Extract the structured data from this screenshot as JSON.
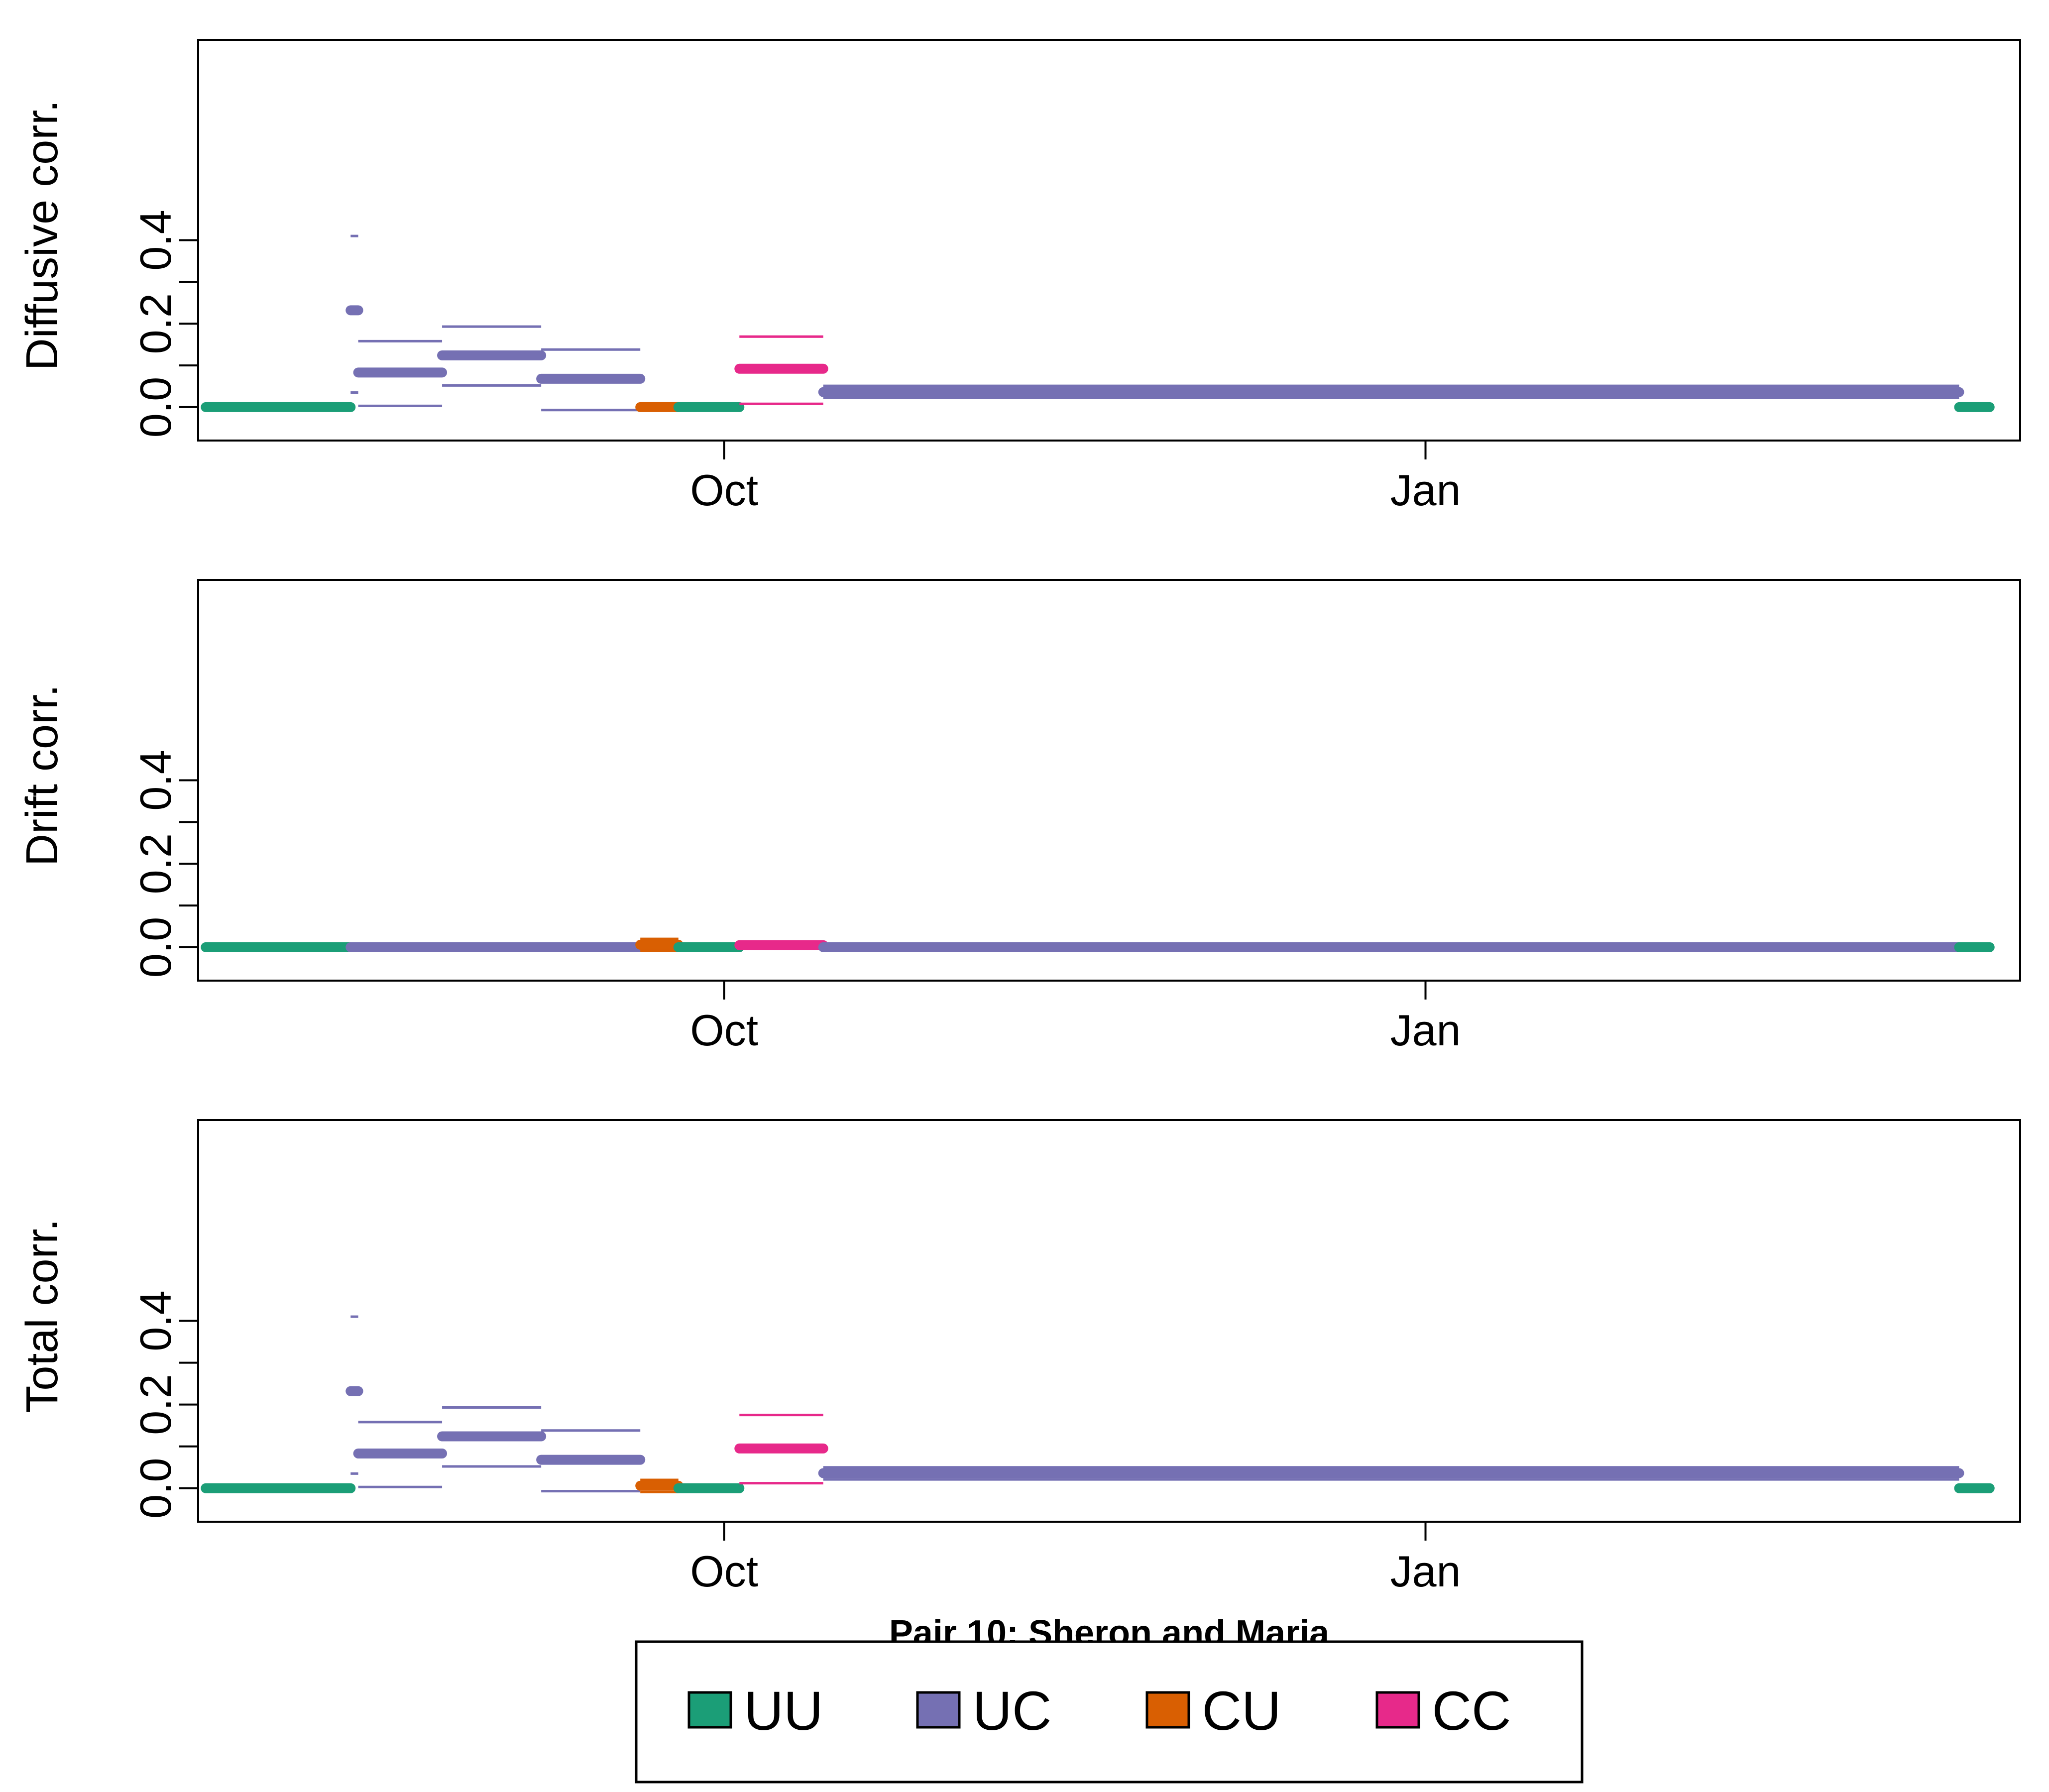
{
  "caption": "Pair 10: Sheron and Maria",
  "chart_data": {
    "type": "segment-interval",
    "date_axis": {
      "tick_labels": [
        "Oct",
        "Jan"
      ],
      "tick_dates": [
        "2019-10-01",
        "2020-01-01"
      ],
      "range": [
        "2019-07-24",
        "2020-03-19"
      ]
    },
    "y_axis": {
      "ticks": [
        0.0,
        0.2,
        0.4
      ],
      "tick_labels": [
        "0.0",
        "0.2",
        "0.4"
      ],
      "range": [
        -0.08,
        0.88
      ]
    },
    "group_colors": {
      "UU": "#1b9e77",
      "UC": "#7570b3",
      "CU": "#d95f02",
      "CC": "#e7298a"
    },
    "legend": {
      "position": "bottom",
      "entries": [
        {
          "key": "UU",
          "label": "UU"
        },
        {
          "key": "UC",
          "label": "UC"
        },
        {
          "key": "CU",
          "label": "CU"
        },
        {
          "key": "CC",
          "label": "CC"
        }
      ]
    },
    "panels": [
      {
        "id": "diffusive",
        "ylabel": "Diffusive corr.",
        "segments": [
          {
            "group": "UU",
            "start": "2019-07-25",
            "end": "2019-08-13",
            "value": 0.0
          },
          {
            "group": "UC",
            "start": "2019-08-13",
            "end": "2019-08-14",
            "value": 0.232,
            "lower": 0.035,
            "upper": 0.41
          },
          {
            "group": "UC",
            "start": "2019-08-14",
            "end": "2019-08-25",
            "value": 0.083,
            "lower": 0.003,
            "upper": 0.158
          },
          {
            "group": "UC",
            "start": "2019-08-25",
            "end": "2019-09-07",
            "value": 0.124,
            "lower": 0.052,
            "upper": 0.193
          },
          {
            "group": "UC",
            "start": "2019-09-07",
            "end": "2019-09-20",
            "value": 0.068,
            "lower": -0.007,
            "upper": 0.138
          },
          {
            "group": "CU",
            "start": "2019-09-20",
            "end": "2019-09-25",
            "value": 0.0
          },
          {
            "group": "UU",
            "start": "2019-09-25",
            "end": "2019-10-03",
            "value": 0.0
          },
          {
            "group": "CC",
            "start": "2019-10-03",
            "end": "2019-10-14",
            "value": 0.092,
            "lower": 0.008,
            "upper": 0.169
          },
          {
            "group": "UC",
            "start": "2019-10-14",
            "end": "2020-03-11",
            "value": 0.036,
            "lower": 0.022,
            "upper": 0.051
          },
          {
            "group": "UU",
            "start": "2020-03-11",
            "end": "2020-03-15",
            "value": 0.0
          }
        ]
      },
      {
        "id": "drift",
        "ylabel": "Drift corr.",
        "segments": [
          {
            "group": "UU",
            "start": "2019-07-25",
            "end": "2019-08-13",
            "value": 0.0
          },
          {
            "group": "UC",
            "start": "2019-08-13",
            "end": "2019-09-20",
            "value": 0.0
          },
          {
            "group": "CU",
            "start": "2019-09-20",
            "end": "2019-09-25",
            "value": 0.006,
            "lower": -0.008,
            "upper": 0.02
          },
          {
            "group": "UU",
            "start": "2019-09-25",
            "end": "2019-10-03",
            "value": 0.0
          },
          {
            "group": "CC",
            "start": "2019-10-03",
            "end": "2019-10-14",
            "value": 0.005,
            "lower": -0.004,
            "upper": 0.011
          },
          {
            "group": "UC",
            "start": "2019-10-14",
            "end": "2020-03-11",
            "value": 0.0
          },
          {
            "group": "UU",
            "start": "2020-03-11",
            "end": "2020-03-15",
            "value": 0.0
          }
        ]
      },
      {
        "id": "total",
        "ylabel": "Total corr.",
        "segments": [
          {
            "group": "UU",
            "start": "2019-07-25",
            "end": "2019-08-13",
            "value": 0.0
          },
          {
            "group": "UC",
            "start": "2019-08-13",
            "end": "2019-08-14",
            "value": 0.232,
            "lower": 0.035,
            "upper": 0.41
          },
          {
            "group": "UC",
            "start": "2019-08-14",
            "end": "2019-08-25",
            "value": 0.083,
            "lower": 0.003,
            "upper": 0.158
          },
          {
            "group": "UC",
            "start": "2019-08-25",
            "end": "2019-09-07",
            "value": 0.124,
            "lower": 0.052,
            "upper": 0.193
          },
          {
            "group": "UC",
            "start": "2019-09-07",
            "end": "2019-09-20",
            "value": 0.068,
            "lower": -0.007,
            "upper": 0.138
          },
          {
            "group": "CU",
            "start": "2019-09-20",
            "end": "2019-09-25",
            "value": 0.006,
            "lower": -0.009,
            "upper": 0.02
          },
          {
            "group": "UU",
            "start": "2019-09-25",
            "end": "2019-10-03",
            "value": 0.0
          },
          {
            "group": "CC",
            "start": "2019-10-03",
            "end": "2019-10-14",
            "value": 0.095,
            "lower": 0.012,
            "upper": 0.175
          },
          {
            "group": "UC",
            "start": "2019-10-14",
            "end": "2020-03-11",
            "value": 0.036,
            "lower": 0.021,
            "upper": 0.05
          },
          {
            "group": "UU",
            "start": "2020-03-11",
            "end": "2020-03-15",
            "value": 0.0
          }
        ]
      }
    ]
  }
}
